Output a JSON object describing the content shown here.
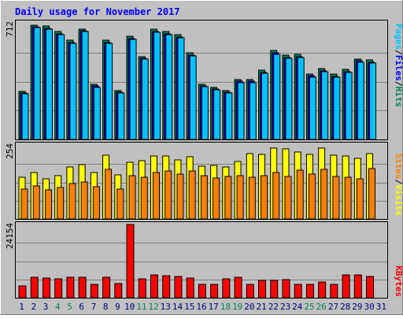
{
  "chart_data": {
    "type": "bar",
    "title": "Daily usage for November 2017",
    "categories": [
      "1",
      "2",
      "3",
      "4",
      "5",
      "6",
      "7",
      "8",
      "9",
      "10",
      "11",
      "12",
      "13",
      "14",
      "15",
      "16",
      "17",
      "18",
      "19",
      "20",
      "21",
      "22",
      "23",
      "24",
      "25",
      "26",
      "27",
      "28",
      "29",
      "30",
      "31"
    ],
    "weekend_days": [
      "4",
      "5",
      "11",
      "12",
      "18",
      "19",
      "25",
      "26"
    ],
    "panels": [
      {
        "id": "pages_files_hits",
        "max_label": "712",
        "ylim": [
          0,
          712
        ],
        "legend": [
          "Pages",
          "/",
          "Files",
          "/",
          "Hits"
        ],
        "series": [
          {
            "name": "Hits",
            "color": "#00805C",
            "values": [
              297,
              704,
              696,
              664,
              610,
              680,
              339,
              611,
              302,
              634,
              507,
              679,
              664,
              645,
              531,
              340,
              319,
              302,
              368,
              367,
              425,
              548,
              518,
              525,
              403,
              435,
              400,
              432,
              495,
              491,
              0
            ]
          },
          {
            "name": "Files",
            "color": "#0000FF",
            "values": [
              285,
              694,
              684,
              651,
              598,
              667,
              327,
              598,
              291,
              620,
              498,
              665,
              650,
              632,
              517,
              329,
              309,
              292,
              356,
              356,
              412,
              531,
              504,
              510,
              390,
              422,
              388,
              418,
              482,
              477,
              0
            ]
          },
          {
            "name": "Pages",
            "color": "#00C0FF",
            "values": [
              280,
              690,
              680,
              645,
              593,
              663,
              320,
              593,
              287,
              614,
              493,
              660,
              645,
              626,
              512,
              323,
              304,
              287,
              351,
              350,
              407,
              525,
              498,
              503,
              384,
              416,
              382,
              412,
              476,
              471,
              0
            ]
          }
        ]
      },
      {
        "id": "visits_sites",
        "max_label": "254",
        "ylim": [
          0,
          254
        ],
        "legend": [
          "Sites",
          "/",
          "Visits"
        ],
        "series": [
          {
            "name": "Visits",
            "color": "#FFFF00",
            "values": [
              145,
              160,
              140,
              150,
              180,
              188,
              160,
              221,
              154,
              196,
              203,
              219,
              218,
              205,
              215,
              182,
              185,
              181,
              200,
              228,
              225,
              246,
              242,
              233,
              223,
              246,
              222,
              218,
              210,
              226,
              0
            ]
          },
          {
            "name": "Sites",
            "color": "#FF8000",
            "values": [
              103,
              114,
              101,
              110,
              122,
              128,
              112,
              173,
              104,
              150,
              146,
              161,
              166,
              157,
              166,
              150,
              141,
              148,
              149,
              146,
              151,
              160,
              148,
              169,
              156,
              173,
              147,
              146,
              140,
              174,
              0
            ]
          }
        ]
      },
      {
        "id": "kbytes",
        "max_label": "24154",
        "ylim": [
          0,
          24154
        ],
        "legend": [
          "KBytes"
        ],
        "series": [
          {
            "name": "KBytes",
            "color": "#FF0000",
            "values": [
              3800,
              6800,
              6400,
              6300,
              6800,
              6800,
              4500,
              6800,
              4600,
              24154,
              6200,
              7500,
              7300,
              6900,
              6500,
              4300,
              4500,
              6200,
              6800,
              4500,
              5600,
              5800,
              5900,
              4300,
              4500,
              5100,
              4500,
              7500,
              7600,
              6900,
              0
            ]
          }
        ]
      }
    ],
    "colors": {
      "background": "#C0C0C0",
      "title_text": "#0000FF",
      "weekday_label": "#000080",
      "weekend_label": "#00805C",
      "plot_border": "#000000",
      "grid": "#808080"
    }
  }
}
